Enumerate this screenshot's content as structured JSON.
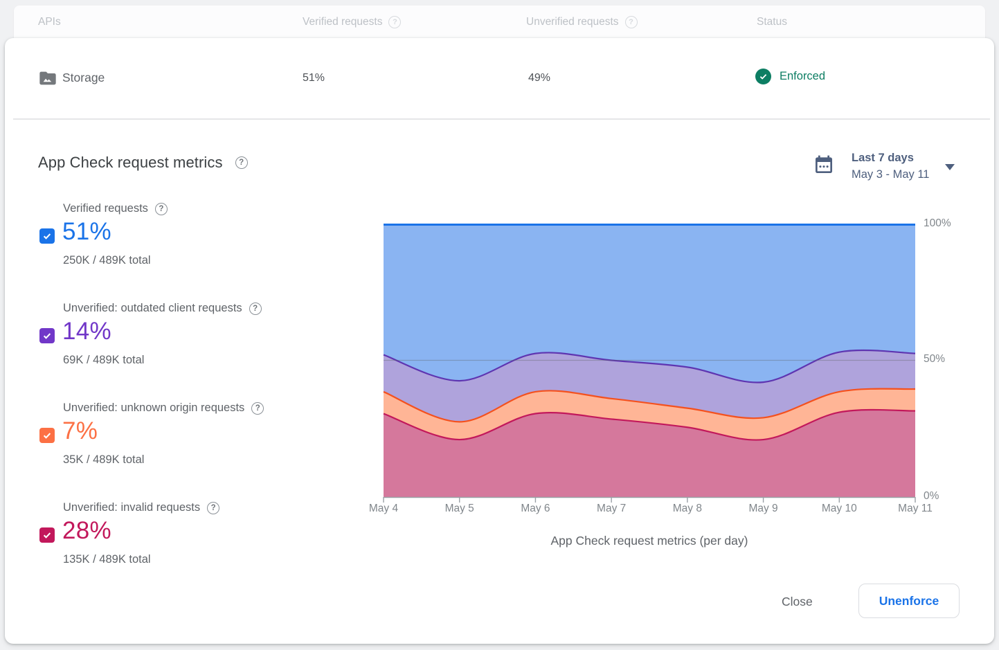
{
  "table": {
    "headers": {
      "apis": "APIs",
      "verified": "Verified requests",
      "unverified": "Unverified requests",
      "status": "Status"
    },
    "row": {
      "api": "Storage",
      "verified": "51%",
      "unverified": "49%",
      "status": "Enforced",
      "status_color": "#0D7E63"
    }
  },
  "panel": {
    "title": "App Check request metrics",
    "date_selector": {
      "label": "Last 7 days",
      "range": "May 3 - May 11"
    },
    "metrics": [
      {
        "label": "Verified requests",
        "value": "51%",
        "total": "250K / 489K total",
        "color": "#1A73E8",
        "checked": true
      },
      {
        "label": "Unverified: outdated client requests",
        "value": "14%",
        "total": "69K / 489K total",
        "color": "#7137C8",
        "checked": true
      },
      {
        "label": "Unverified: unknown origin requests",
        "value": "7%",
        "total": "35K / 489K total",
        "color": "#FC7044",
        "checked": true
      },
      {
        "label": "Unverified: invalid requests",
        "value": "28%",
        "total": "135K / 489K total",
        "color": "#C2185B",
        "checked": true
      }
    ],
    "actions": {
      "close": "Close",
      "unenforce": "Unenforce"
    }
  },
  "chart_data": {
    "type": "area",
    "stacked": true,
    "x": [
      "May 4",
      "May 5",
      "May 6",
      "May 7",
      "May 8",
      "May 9",
      "May 10",
      "May 11"
    ],
    "series": [
      {
        "name": "Unverified: invalid requests",
        "fill": "#D5789C",
        "line": "#C2185B",
        "values": [
          30.5,
          21,
          30.5,
          28.5,
          25.5,
          21,
          31,
          31.5
        ]
      },
      {
        "name": "Unverified: unknown origin requests",
        "fill": "#FFB596",
        "line": "#F4511E",
        "values": [
          8,
          6.5,
          8,
          7.5,
          7,
          8,
          7.5,
          8
        ]
      },
      {
        "name": "Unverified: outdated client requests",
        "fill": "#AFA3DC",
        "line": "#5E35B1",
        "values": [
          13.5,
          15,
          14,
          14,
          15,
          13,
          14.5,
          13
        ]
      },
      {
        "name": "Verified requests",
        "fill": "#8AB4F2",
        "line": "#1A73E8",
        "values": [
          48,
          57.5,
          47.5,
          50,
          52.5,
          58,
          47,
          47.5
        ]
      }
    ],
    "ylim": [
      0,
      100
    ],
    "yticks": [
      "100%",
      "50%",
      "0%"
    ],
    "gridline_at": 50,
    "grid": true,
    "legend_position": "none",
    "caption": "App Check request metrics (per day)"
  }
}
